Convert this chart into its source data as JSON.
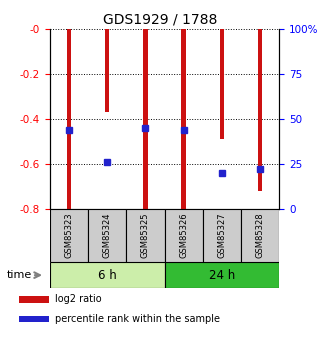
{
  "title": "GDS1929 / 1788",
  "samples": [
    "GSM85323",
    "GSM85324",
    "GSM85325",
    "GSM85326",
    "GSM85327",
    "GSM85328"
  ],
  "log2_ratio": [
    -0.82,
    -0.37,
    -0.82,
    -0.82,
    -0.49,
    -0.72
  ],
  "percentile_rank_pct": [
    44,
    26,
    45,
    44,
    20,
    22
  ],
  "bar_color": "#cc1111",
  "percentile_color": "#2222cc",
  "ylim_left": [
    -0.8,
    0.0
  ],
  "ylim_right": [
    0,
    100
  ],
  "yticks_left": [
    0.0,
    -0.2,
    -0.4,
    -0.6,
    -0.8
  ],
  "ytick_labels_left": [
    "-0",
    "-0.2",
    "-0.4",
    "-0.6",
    "-0.8"
  ],
  "yticks_right": [
    0,
    25,
    50,
    75,
    100
  ],
  "ytick_labels_right": [
    "0",
    "25",
    "50",
    "75",
    "100%"
  ],
  "groups": [
    {
      "label": "6 h",
      "indices": [
        0,
        1,
        2
      ],
      "color": "#cceeaa"
    },
    {
      "label": "24 h",
      "indices": [
        3,
        4,
        5
      ],
      "color": "#33bb33"
    }
  ],
  "time_label": "time",
  "legend": [
    {
      "label": "log2 ratio",
      "color": "#cc1111"
    },
    {
      "label": "percentile rank within the sample",
      "color": "#2222cc"
    }
  ],
  "bar_width": 0.12,
  "label_box_color": "#cccccc",
  "fig_width": 3.21,
  "fig_height": 3.45,
  "dpi": 100
}
